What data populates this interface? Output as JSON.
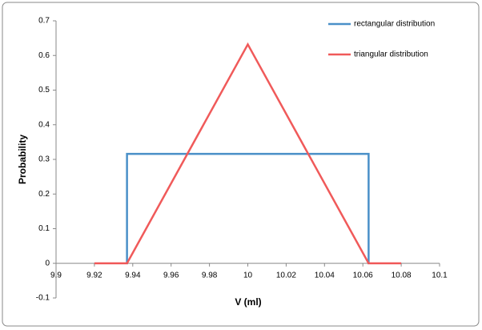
{
  "chart_data": {
    "type": "line",
    "x_label": "V (ml)",
    "y_label": "Probability",
    "series": [
      {
        "name": "rectangular distribution",
        "color": "#4a90c8",
        "x": [
          9.92,
          9.937,
          9.937,
          10.063,
          10.063,
          10.08
        ],
        "values": [
          0,
          0,
          0.316,
          0.316,
          0,
          0
        ]
      },
      {
        "name": "triangular distribution",
        "color": "#f05a5a",
        "x": [
          9.92,
          9.937,
          10,
          10.063,
          10.08
        ],
        "values": [
          0,
          0,
          0.632,
          0,
          0
        ]
      }
    ],
    "xlim": [
      9.9,
      10.1
    ],
    "xticks": [
      9.9,
      9.92,
      9.94,
      9.96,
      9.98,
      10,
      10.02,
      10.04,
      10.06,
      10.08,
      10.1
    ],
    "ylim": [
      -0.1,
      0.7
    ],
    "yticks": [
      -0.1,
      0,
      0.1,
      0.2,
      0.3,
      0.4,
      0.5,
      0.6,
      0.7
    ],
    "grid": false,
    "legend": "top-right"
  }
}
